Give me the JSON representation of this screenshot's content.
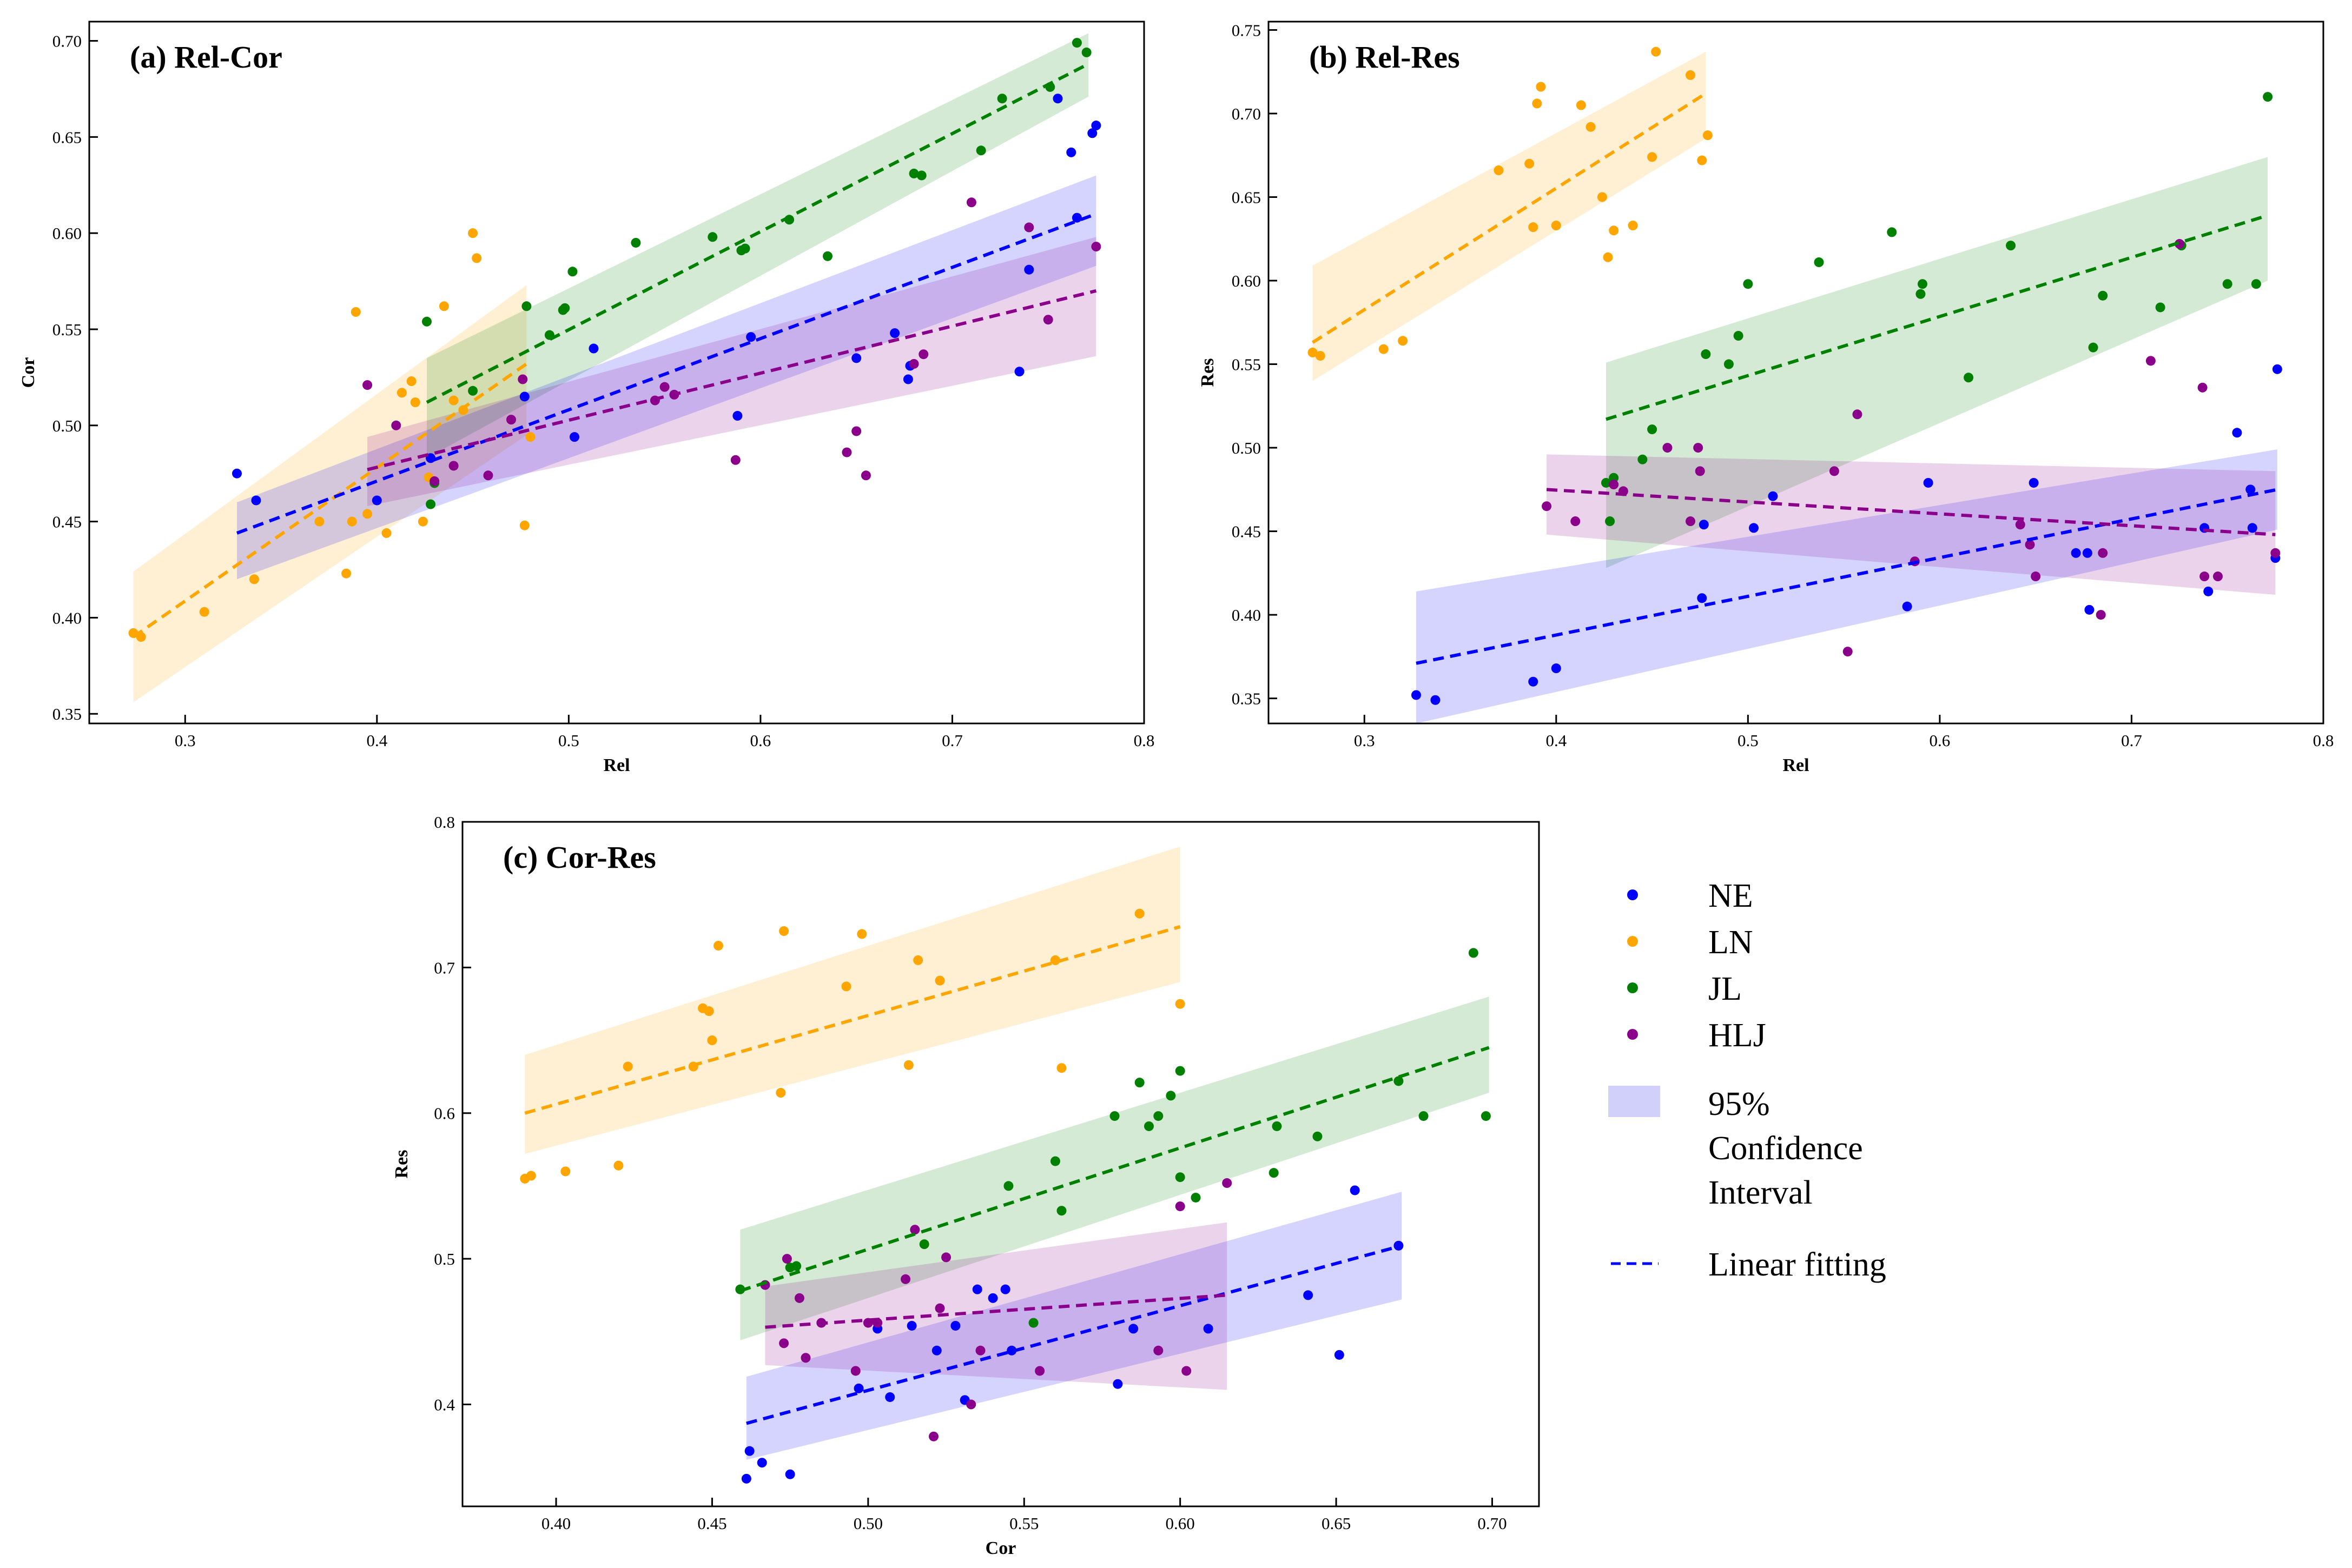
{
  "colors": {
    "NE": "#0000ff",
    "LN": "#ffa500",
    "JL": "#008000",
    "HLJ": "#8b008b",
    "ci_legend": "#d0d0fb"
  },
  "legend": {
    "series": [
      {
        "key": "NE",
        "label": "NE"
      },
      {
        "key": "LN",
        "label": "LN"
      },
      {
        "key": "JL",
        "label": "JL"
      },
      {
        "key": "HLJ",
        "label": "HLJ"
      }
    ],
    "ci_lines": [
      "95%",
      "Confidence",
      "Interval"
    ],
    "fit_label": "Linear fitting"
  },
  "chart_data": [
    {
      "id": "a",
      "type": "scatter",
      "title": "(a)  Rel-Cor",
      "xlabel": "Rel",
      "ylabel": "Cor",
      "xlim": [
        0.25,
        0.8
      ],
      "ylim": [
        0.345,
        0.71
      ],
      "xticks": [
        0.3,
        0.4,
        0.5,
        0.6,
        0.7,
        0.8
      ],
      "xtick_labels": [
        "0.3",
        "0.4",
        "0.5",
        "0.6",
        "0.7",
        "0.8"
      ],
      "yticks": [
        0.35,
        0.4,
        0.45,
        0.5,
        0.55,
        0.6,
        0.65,
        0.7
      ],
      "ytick_labels": [
        "0.35",
        "0.40",
        "0.45",
        "0.50",
        "0.55",
        "0.60",
        "0.65",
        "0.70"
      ],
      "series": [
        {
          "name": "LN",
          "x": [
            0.273,
            0.277,
            0.31,
            0.336,
            0.37,
            0.384,
            0.387,
            0.389,
            0.395,
            0.405,
            0.413,
            0.418,
            0.42,
            0.424,
            0.427,
            0.435,
            0.44,
            0.445,
            0.45,
            0.452,
            0.477,
            0.48
          ],
          "y": [
            0.392,
            0.39,
            0.403,
            0.42,
            0.45,
            0.423,
            0.45,
            0.559,
            0.454,
            0.444,
            0.517,
            0.523,
            0.512,
            0.45,
            0.473,
            0.562,
            0.513,
            0.508,
            0.6,
            0.587,
            0.448,
            0.494
          ],
          "fit": {
            "x0": 0.273,
            "y0": 0.39,
            "x1": 0.478,
            "y1": 0.532
          },
          "ci": {
            "upper0": 0.424,
            "lower0": 0.356,
            "upper1": 0.573,
            "lower1": 0.495
          }
        },
        {
          "name": "JL",
          "x": [
            0.426,
            0.428,
            0.43,
            0.45,
            0.478,
            0.49,
            0.497,
            0.498,
            0.502,
            0.535,
            0.575,
            0.59,
            0.592,
            0.615,
            0.635,
            0.68,
            0.684,
            0.715,
            0.726,
            0.751,
            0.765,
            0.77
          ],
          "y": [
            0.554,
            0.459,
            0.47,
            0.518,
            0.562,
            0.547,
            0.56,
            0.561,
            0.58,
            0.595,
            0.598,
            0.591,
            0.592,
            0.607,
            0.588,
            0.631,
            0.63,
            0.643,
            0.67,
            0.676,
            0.699,
            0.694
          ],
          "fit": {
            "x0": 0.426,
            "y0": 0.512,
            "x1": 0.771,
            "y1": 0.688
          },
          "ci": {
            "upper0": 0.535,
            "lower0": 0.483,
            "upper1": 0.704,
            "lower1": 0.671
          }
        },
        {
          "name": "NE",
          "x": [
            0.327,
            0.337,
            0.4,
            0.428,
            0.477,
            0.503,
            0.513,
            0.588,
            0.595,
            0.65,
            0.67,
            0.677,
            0.678,
            0.735,
            0.74,
            0.755,
            0.762,
            0.765,
            0.773,
            0.775
          ],
          "y": [
            0.475,
            0.461,
            0.461,
            0.483,
            0.515,
            0.494,
            0.54,
            0.505,
            0.546,
            0.535,
            0.548,
            0.524,
            0.531,
            0.528,
            0.581,
            0.67,
            0.642,
            0.608,
            0.652,
            0.656
          ],
          "fit": {
            "x0": 0.327,
            "y0": 0.444,
            "x1": 0.775,
            "y1": 0.61
          },
          "ci": {
            "upper0": 0.46,
            "lower0": 0.42,
            "upper1": 0.63,
            "lower1": 0.583
          }
        },
        {
          "name": "HLJ",
          "x": [
            0.395,
            0.41,
            0.43,
            0.44,
            0.458,
            0.47,
            0.476,
            0.545,
            0.55,
            0.555,
            0.587,
            0.645,
            0.65,
            0.655,
            0.68,
            0.685,
            0.71,
            0.74,
            0.75,
            0.775
          ],
          "y": [
            0.521,
            0.5,
            0.471,
            0.479,
            0.474,
            0.503,
            0.524,
            0.513,
            0.52,
            0.516,
            0.482,
            0.486,
            0.497,
            0.474,
            0.532,
            0.537,
            0.616,
            0.603,
            0.555,
            0.593
          ],
          "fit": {
            "x0": 0.395,
            "y0": 0.477,
            "x1": 0.775,
            "y1": 0.57
          },
          "ci": {
            "upper0": 0.494,
            "lower0": 0.458,
            "upper1": 0.598,
            "lower1": 0.536
          }
        }
      ]
    },
    {
      "id": "b",
      "type": "scatter",
      "title": "(b)  Rel-Res",
      "xlabel": "Rel",
      "ylabel": "Res",
      "xlim": [
        0.25,
        0.8
      ],
      "ylim": [
        0.335,
        0.755
      ],
      "xticks": [
        0.3,
        0.4,
        0.5,
        0.6,
        0.7,
        0.8
      ],
      "xtick_labels": [
        "0.3",
        "0.4",
        "0.5",
        "0.6",
        "0.7",
        "0.8"
      ],
      "yticks": [
        0.35,
        0.4,
        0.45,
        0.5,
        0.55,
        0.6,
        0.65,
        0.7,
        0.75
      ],
      "ytick_labels": [
        "0.35",
        "0.40",
        "0.45",
        "0.50",
        "0.55",
        "0.60",
        "0.65",
        "0.70",
        "0.75"
      ],
      "series": [
        {
          "name": "LN",
          "x": [
            0.273,
            0.277,
            0.31,
            0.32,
            0.37,
            0.386,
            0.388,
            0.39,
            0.392,
            0.4,
            0.413,
            0.418,
            0.424,
            0.427,
            0.43,
            0.44,
            0.45,
            0.452,
            0.47,
            0.476,
            0.479
          ],
          "y": [
            0.557,
            0.555,
            0.559,
            0.564,
            0.666,
            0.67,
            0.632,
            0.706,
            0.716,
            0.633,
            0.705,
            0.692,
            0.65,
            0.614,
            0.63,
            0.633,
            0.674,
            0.737,
            0.723,
            0.672,
            0.687
          ],
          "fit": {
            "x0": 0.273,
            "y0": 0.563,
            "x1": 0.478,
            "y1": 0.712
          },
          "ci": {
            "upper0": 0.609,
            "lower0": 0.54,
            "upper1": 0.737,
            "lower1": 0.685
          }
        },
        {
          "name": "JL",
          "x": [
            0.426,
            0.428,
            0.43,
            0.445,
            0.45,
            0.478,
            0.49,
            0.495,
            0.5,
            0.537,
            0.575,
            0.59,
            0.591,
            0.615,
            0.637,
            0.68,
            0.685,
            0.715,
            0.726,
            0.75,
            0.765,
            0.771
          ],
          "y": [
            0.479,
            0.456,
            0.482,
            0.493,
            0.511,
            0.556,
            0.55,
            0.567,
            0.598,
            0.611,
            0.629,
            0.592,
            0.598,
            0.542,
            0.621,
            0.56,
            0.591,
            0.584,
            0.621,
            0.598,
            0.598,
            0.71
          ],
          "fit": {
            "x0": 0.426,
            "y0": 0.517,
            "x1": 0.771,
            "y1": 0.639
          },
          "ci": {
            "upper0": 0.551,
            "lower0": 0.428,
            "upper1": 0.674,
            "lower1": 0.6
          }
        },
        {
          "name": "NE",
          "x": [
            0.327,
            0.337,
            0.388,
            0.4,
            0.476,
            0.477,
            0.503,
            0.513,
            0.583,
            0.594,
            0.649,
            0.671,
            0.677,
            0.678,
            0.738,
            0.74,
            0.755,
            0.762,
            0.763,
            0.775,
            0.776
          ],
          "y": [
            0.352,
            0.349,
            0.36,
            0.368,
            0.41,
            0.454,
            0.452,
            0.471,
            0.405,
            0.479,
            0.479,
            0.437,
            0.437,
            0.403,
            0.452,
            0.414,
            0.509,
            0.475,
            0.452,
            0.434,
            0.547
          ],
          "fit": {
            "x0": 0.327,
            "y0": 0.371,
            "x1": 0.776,
            "y1": 0.475
          },
          "ci": {
            "upper0": 0.414,
            "lower0": 0.335,
            "upper1": 0.499,
            "lower1": 0.451
          }
        },
        {
          "name": "HLJ",
          "x": [
            0.395,
            0.41,
            0.43,
            0.435,
            0.458,
            0.47,
            0.474,
            0.475,
            0.545,
            0.552,
            0.557,
            0.587,
            0.642,
            0.647,
            0.65,
            0.684,
            0.685,
            0.71,
            0.725,
            0.737,
            0.738,
            0.745,
            0.775
          ],
          "y": [
            0.465,
            0.456,
            0.478,
            0.474,
            0.5,
            0.456,
            0.5,
            0.486,
            0.486,
            0.378,
            0.52,
            0.432,
            0.454,
            0.442,
            0.423,
            0.4,
            0.437,
            0.552,
            0.622,
            0.536,
            0.423,
            0.423,
            0.437
          ],
          "fit": {
            "x0": 0.395,
            "y0": 0.475,
            "x1": 0.775,
            "y1": 0.448
          },
          "ci": {
            "upper0": 0.496,
            "lower0": 0.448,
            "upper1": 0.486,
            "lower1": 0.412
          }
        }
      ]
    },
    {
      "id": "c",
      "type": "scatter",
      "title": "(c) Cor-Res",
      "xlabel": "Cor",
      "ylabel": "Res",
      "xlim": [
        0.37,
        0.715
      ],
      "ylim": [
        0.33,
        0.8
      ],
      "xticks": [
        0.4,
        0.45,
        0.5,
        0.55,
        0.6,
        0.65,
        0.7
      ],
      "xtick_labels": [
        "0.40",
        "0.45",
        "0.50",
        "0.55",
        "0.60",
        "0.65",
        "0.70"
      ],
      "yticks": [
        0.4,
        0.5,
        0.6,
        0.7,
        0.8
      ],
      "ytick_labels": [
        "0.4",
        "0.5",
        "0.6",
        "0.7",
        "0.8"
      ],
      "series": [
        {
          "name": "LN",
          "x": [
            0.39,
            0.392,
            0.403,
            0.42,
            0.423,
            0.444,
            0.447,
            0.449,
            0.45,
            0.452,
            0.472,
            0.473,
            0.493,
            0.498,
            0.513,
            0.516,
            0.523,
            0.56,
            0.562,
            0.587,
            0.6
          ],
          "y": [
            0.555,
            0.557,
            0.56,
            0.564,
            0.632,
            0.632,
            0.672,
            0.67,
            0.65,
            0.715,
            0.614,
            0.725,
            0.687,
            0.723,
            0.633,
            0.705,
            0.691,
            0.705,
            0.631,
            0.737,
            0.675
          ],
          "fit": {
            "x0": 0.39,
            "y0": 0.6,
            "x1": 0.6,
            "y1": 0.728
          },
          "ci": {
            "upper0": 0.64,
            "lower0": 0.572,
            "upper1": 0.783,
            "lower1": 0.69
          }
        },
        {
          "name": "JL",
          "x": [
            0.459,
            0.475,
            0.477,
            0.518,
            0.545,
            0.553,
            0.56,
            0.562,
            0.579,
            0.587,
            0.59,
            0.593,
            0.597,
            0.6,
            0.6,
            0.605,
            0.63,
            0.631,
            0.644,
            0.67,
            0.678,
            0.694,
            0.698
          ],
          "y": [
            0.479,
            0.494,
            0.495,
            0.51,
            0.55,
            0.456,
            0.567,
            0.533,
            0.598,
            0.621,
            0.591,
            0.598,
            0.612,
            0.629,
            0.556,
            0.542,
            0.559,
            0.591,
            0.584,
            0.622,
            0.598,
            0.71,
            0.598
          ],
          "fit": {
            "x0": 0.459,
            "y0": 0.478,
            "x1": 0.699,
            "y1": 0.645
          },
          "ci": {
            "upper0": 0.52,
            "lower0": 0.444,
            "upper1": 0.68,
            "lower1": 0.614
          }
        },
        {
          "name": "NE",
          "x": [
            0.461,
            0.462,
            0.466,
            0.475,
            0.497,
            0.503,
            0.507,
            0.514,
            0.522,
            0.528,
            0.531,
            0.535,
            0.54,
            0.544,
            0.546,
            0.58,
            0.585,
            0.609,
            0.641,
            0.651,
            0.656,
            0.67
          ],
          "y": [
            0.349,
            0.368,
            0.36,
            0.352,
            0.411,
            0.452,
            0.405,
            0.454,
            0.437,
            0.454,
            0.403,
            0.479,
            0.473,
            0.479,
            0.437,
            0.414,
            0.452,
            0.452,
            0.475,
            0.434,
            0.547,
            0.509
          ],
          "fit": {
            "x0": 0.461,
            "y0": 0.387,
            "x1": 0.671,
            "y1": 0.509
          },
          "ci": {
            "upper0": 0.419,
            "lower0": 0.362,
            "upper1": 0.546,
            "lower1": 0.472
          }
        },
        {
          "name": "HLJ",
          "x": [
            0.467,
            0.473,
            0.474,
            0.478,
            0.48,
            0.485,
            0.496,
            0.5,
            0.503,
            0.512,
            0.515,
            0.521,
            0.523,
            0.525,
            0.533,
            0.536,
            0.555,
            0.593,
            0.6,
            0.602,
            0.615
          ],
          "y": [
            0.482,
            0.442,
            0.5,
            0.473,
            0.432,
            0.456,
            0.423,
            0.456,
            0.456,
            0.486,
            0.52,
            0.378,
            0.466,
            0.501,
            0.4,
            0.437,
            0.423,
            0.437,
            0.536,
            0.423,
            0.552
          ],
          "fit": {
            "x0": 0.467,
            "y0": 0.453,
            "x1": 0.615,
            "y1": 0.475
          },
          "ci": {
            "upper0": 0.481,
            "lower0": 0.427,
            "upper1": 0.525,
            "lower1": 0.41
          }
        }
      ]
    }
  ]
}
